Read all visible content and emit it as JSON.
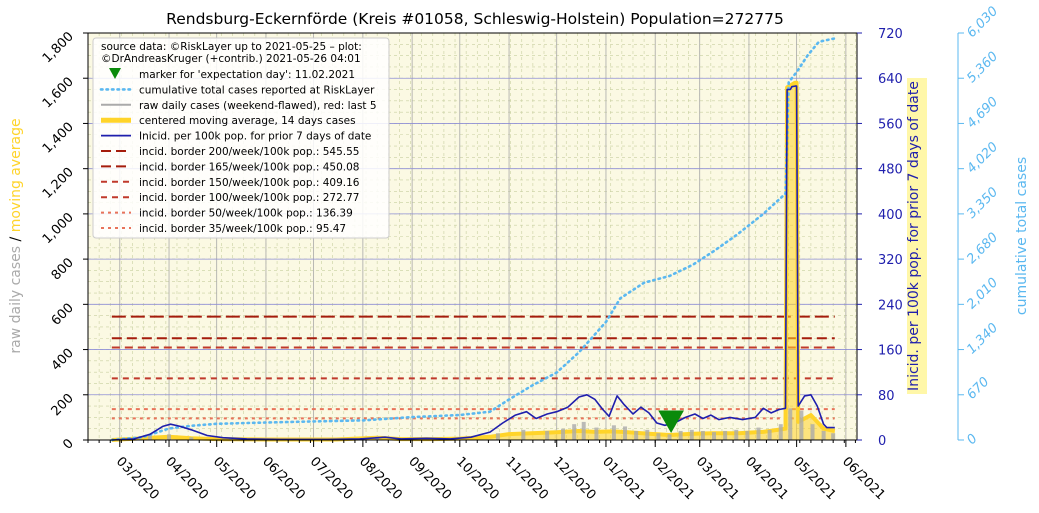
{
  "chart_data": {
    "type": "line",
    "title": "Rendsburg-Eckernförde (Kreis #01058, Schleswig-Holstein) Population=272775",
    "colors": {
      "background": "#fbf9e3",
      "incidence": "#1f1fad",
      "cumulative": "#5bb8f0",
      "raw": "#aaaaaa",
      "moving_avg": "#ffd42a",
      "marker": "#0a8a0a",
      "border_dark": "#a51c0c",
      "border_mid": "#c0392b",
      "border_light": "#e8735a",
      "ylabel_left_raw": "#aaaaaa",
      "ylabel_left_avg": "#ffd42a",
      "ylabel_right1": "#1f1fad",
      "ylabel_right2": "#5bb8f0"
    },
    "y_left": {
      "label_raw": "raw daily cases",
      "label_sep": "/",
      "label_avg": "moving average",
      "ylim": [
        0,
        1800
      ],
      "ticks": [
        "0",
        "200",
        "400",
        "600",
        "800",
        "1,000",
        "1,200",
        "1,400",
        "1,600",
        "1,800"
      ]
    },
    "y_right1": {
      "label": "Inicid. per 100k pop. for prior 7 days of date",
      "ylim": [
        0,
        720
      ],
      "ticks": [
        "0",
        "80",
        "160",
        "240",
        "320",
        "400",
        "480",
        "560",
        "640",
        "720"
      ]
    },
    "y_right2": {
      "label": "cumulative total cases",
      "ylim": [
        0,
        6030
      ],
      "ticks": [
        "0",
        "670",
        "1,340",
        "2,010",
        "2,680",
        "3,350",
        "4,020",
        "4,690",
        "5,360",
        "6,030"
      ]
    },
    "x_axis": {
      "start": "2020-02-10",
      "end": "2021-06-08",
      "tick_labels": [
        "03/2020",
        "04/2020",
        "05/2020",
        "06/2020",
        "07/2020",
        "08/2020",
        "09/2020",
        "10/2020",
        "11/2020",
        "12/2020",
        "01/2021",
        "02/2021",
        "03/2021",
        "04/2021",
        "05/2021",
        "06/2021"
      ],
      "tick_dates": [
        "2020-03-01",
        "2020-04-01",
        "2020-05-01",
        "2020-06-01",
        "2020-07-01",
        "2020-08-01",
        "2020-09-01",
        "2020-10-01",
        "2020-11-01",
        "2020-12-01",
        "2021-01-01",
        "2021-02-01",
        "2021-03-01",
        "2021-04-01",
        "2021-05-01",
        "2021-06-01"
      ]
    },
    "legend": {
      "position": "top-left",
      "source_line1": "source data: ©RiskLayer up to 2021-05-25 – plot:",
      "source_line2": "©DrAndreasKruger (+contrib.) 2021-05-26 04:01",
      "entries": [
        {
          "label": "marker for 'expectation day': 11.02.2021",
          "style": "marker"
        },
        {
          "label": "cumulative total cases reported at RiskLayer",
          "style": "cumulative"
        },
        {
          "label": "raw daily cases (weekend-flawed), red: last 5",
          "style": "raw"
        },
        {
          "label": "centered moving average, 14 days cases",
          "style": "moving_avg"
        },
        {
          "label": "Inicid. per 100k pop. for prior 7 days of date",
          "style": "incidence"
        },
        {
          "label": "incid. border 200/week/100k pop.: 545.55",
          "style": "border_dark"
        },
        {
          "label": "incid. border 165/week/100k pop.: 450.08",
          "style": "border_dark"
        },
        {
          "label": "incid. border 150/week/100k pop.: 409.16",
          "style": "border_mid"
        },
        {
          "label": "incid. border 100/week/100k pop.: 272.77",
          "style": "border_mid"
        },
        {
          "label": "incid. border   50/week/100k pop.: 136.39",
          "style": "border_light"
        },
        {
          "label": "incid. border   35/week/100k pop.: 95.47",
          "style": "border_light"
        }
      ]
    },
    "incidence_borders": [
      {
        "per_week": 200,
        "cases": 545.55
      },
      {
        "per_week": 165,
        "cases": 450.08
      },
      {
        "per_week": 150,
        "cases": 409.16
      },
      {
        "per_week": 100,
        "cases": 272.77
      },
      {
        "per_week": 50,
        "cases": 136.39
      },
      {
        "per_week": 35,
        "cases": 95.47
      }
    ],
    "marker": {
      "date": "2021-02-11",
      "label": "11.02.2021"
    },
    "series": [
      {
        "name": "Inicid. per 100k pop. for prior 7 days of date",
        "axis": "right1",
        "points": [
          [
            "2020-02-25",
            0
          ],
          [
            "2020-03-10",
            2
          ],
          [
            "2020-03-20",
            10
          ],
          [
            "2020-03-28",
            24
          ],
          [
            "2020-04-02",
            28
          ],
          [
            "2020-04-08",
            24
          ],
          [
            "2020-04-15",
            18
          ],
          [
            "2020-04-25",
            8
          ],
          [
            "2020-05-05",
            4
          ],
          [
            "2020-05-20",
            2
          ],
          [
            "2020-06-10",
            1
          ],
          [
            "2020-07-10",
            1
          ],
          [
            "2020-07-30",
            2
          ],
          [
            "2020-08-15",
            5
          ],
          [
            "2020-08-25",
            2
          ],
          [
            "2020-09-10",
            3
          ],
          [
            "2020-09-25",
            2
          ],
          [
            "2020-10-08",
            5
          ],
          [
            "2020-10-20",
            14
          ],
          [
            "2020-10-28",
            30
          ],
          [
            "2020-11-05",
            44
          ],
          [
            "2020-11-12",
            50
          ],
          [
            "2020-11-18",
            38
          ],
          [
            "2020-11-25",
            46
          ],
          [
            "2020-12-01",
            50
          ],
          [
            "2020-12-08",
            58
          ],
          [
            "2020-12-15",
            76
          ],
          [
            "2020-12-20",
            80
          ],
          [
            "2020-12-25",
            72
          ],
          [
            "2020-12-30",
            54
          ],
          [
            "2021-01-03",
            42
          ],
          [
            "2021-01-08",
            78
          ],
          [
            "2021-01-12",
            64
          ],
          [
            "2021-01-18",
            46
          ],
          [
            "2021-01-23",
            58
          ],
          [
            "2021-01-28",
            48
          ],
          [
            "2021-02-02",
            30
          ],
          [
            "2021-02-07",
            26
          ],
          [
            "2021-02-13",
            30
          ],
          [
            "2021-02-20",
            40
          ],
          [
            "2021-02-26",
            46
          ],
          [
            "2021-03-03",
            38
          ],
          [
            "2021-03-08",
            44
          ],
          [
            "2021-03-13",
            36
          ],
          [
            "2021-03-20",
            40
          ],
          [
            "2021-03-28",
            36
          ],
          [
            "2021-04-05",
            40
          ],
          [
            "2021-04-10",
            56
          ],
          [
            "2021-04-15",
            48
          ],
          [
            "2021-04-20",
            54
          ],
          [
            "2021-04-24",
            56
          ],
          [
            "2021-04-25",
            620
          ],
          [
            "2021-04-27",
            620
          ],
          [
            "2021-04-28",
            625
          ],
          [
            "2021-04-30",
            626
          ],
          [
            "2021-05-01",
            626
          ],
          [
            "2021-05-02",
            60
          ],
          [
            "2021-05-06",
            78
          ],
          [
            "2021-05-10",
            80
          ],
          [
            "2021-05-14",
            60
          ],
          [
            "2021-05-18",
            28
          ],
          [
            "2021-05-20",
            22
          ],
          [
            "2021-05-25",
            22
          ]
        ]
      },
      {
        "name": "cumulative total cases reported at RiskLayer",
        "axis": "right2",
        "points": [
          [
            "2020-02-25",
            0
          ],
          [
            "2020-03-15",
            40
          ],
          [
            "2020-04-01",
            170
          ],
          [
            "2020-04-15",
            210
          ],
          [
            "2020-05-01",
            240
          ],
          [
            "2020-06-01",
            260
          ],
          [
            "2020-07-01",
            275
          ],
          [
            "2020-08-01",
            290
          ],
          [
            "2020-09-01",
            340
          ],
          [
            "2020-10-01",
            370
          ],
          [
            "2020-10-20",
            420
          ],
          [
            "2020-11-01",
            600
          ],
          [
            "2020-11-15",
            800
          ],
          [
            "2020-12-01",
            1000
          ],
          [
            "2020-12-15",
            1300
          ],
          [
            "2021-01-01",
            1750
          ],
          [
            "2021-01-10",
            2100
          ],
          [
            "2021-01-25",
            2330
          ],
          [
            "2021-02-10",
            2430
          ],
          [
            "2021-02-25",
            2600
          ],
          [
            "2021-03-10",
            2800
          ],
          [
            "2021-03-25",
            3050
          ],
          [
            "2021-04-10",
            3350
          ],
          [
            "2021-04-24",
            3650
          ],
          [
            "2021-04-26",
            5300
          ],
          [
            "2021-05-01",
            5450
          ],
          [
            "2021-05-08",
            5700
          ],
          [
            "2021-05-15",
            5900
          ],
          [
            "2021-05-25",
            5950
          ]
        ]
      },
      {
        "name": "centered moving average, 14 days cases",
        "axis": "left",
        "points": [
          [
            "2020-02-25",
            0
          ],
          [
            "2020-03-15",
            8
          ],
          [
            "2020-04-01",
            14
          ],
          [
            "2020-04-15",
            8
          ],
          [
            "2020-05-01",
            4
          ],
          [
            "2020-06-01",
            2
          ],
          [
            "2020-07-15",
            2
          ],
          [
            "2020-08-10",
            10
          ],
          [
            "2020-08-25",
            4
          ],
          [
            "2020-09-15",
            4
          ],
          [
            "2020-10-01",
            6
          ],
          [
            "2020-10-20",
            14
          ],
          [
            "2020-11-01",
            26
          ],
          [
            "2020-11-15",
            30
          ],
          [
            "2020-12-01",
            34
          ],
          [
            "2020-12-15",
            40
          ],
          [
            "2020-12-25",
            36
          ],
          [
            "2021-01-05",
            38
          ],
          [
            "2021-01-15",
            34
          ],
          [
            "2021-01-28",
            28
          ],
          [
            "2021-02-10",
            22
          ],
          [
            "2021-02-25",
            28
          ],
          [
            "2021-03-10",
            30
          ],
          [
            "2021-03-25",
            30
          ],
          [
            "2021-04-10",
            36
          ],
          [
            "2021-04-24",
            50
          ],
          [
            "2021-04-25",
            1560
          ],
          [
            "2021-04-30",
            1580
          ],
          [
            "2021-05-01",
            1580
          ],
          [
            "2021-05-02",
            80
          ],
          [
            "2021-05-10",
            110
          ],
          [
            "2021-05-18",
            50
          ],
          [
            "2021-05-25",
            40
          ]
        ]
      },
      {
        "name": "raw daily cases (weekend-flawed), red: last 5",
        "axis": "left",
        "points": [
          [
            "2020-03-20",
            20
          ],
          [
            "2020-04-01",
            25
          ],
          [
            "2020-04-15",
            12
          ],
          [
            "2020-05-10",
            4
          ],
          [
            "2020-08-10",
            15
          ],
          [
            "2020-10-25",
            30
          ],
          [
            "2020-11-10",
            45
          ],
          [
            "2020-11-25",
            40
          ],
          [
            "2020-12-05",
            50
          ],
          [
            "2020-12-12",
            70
          ],
          [
            "2020-12-18",
            80
          ],
          [
            "2020-12-26",
            55
          ],
          [
            "2021-01-06",
            65
          ],
          [
            "2021-01-13",
            60
          ],
          [
            "2021-01-20",
            40
          ],
          [
            "2021-01-27",
            45
          ],
          [
            "2021-02-03",
            30
          ],
          [
            "2021-02-10",
            25
          ],
          [
            "2021-02-17",
            40
          ],
          [
            "2021-02-24",
            45
          ],
          [
            "2021-03-03",
            40
          ],
          [
            "2021-03-10",
            35
          ],
          [
            "2021-03-17",
            40
          ],
          [
            "2021-03-24",
            45
          ],
          [
            "2021-03-31",
            40
          ],
          [
            "2021-04-07",
            55
          ],
          [
            "2021-04-14",
            45
          ],
          [
            "2021-04-21",
            70
          ],
          [
            "2021-04-27",
            140
          ],
          [
            "2021-05-04",
            130
          ],
          [
            "2021-05-11",
            70
          ],
          [
            "2021-05-18",
            40
          ],
          [
            "2021-05-24",
            30
          ]
        ]
      }
    ]
  }
}
